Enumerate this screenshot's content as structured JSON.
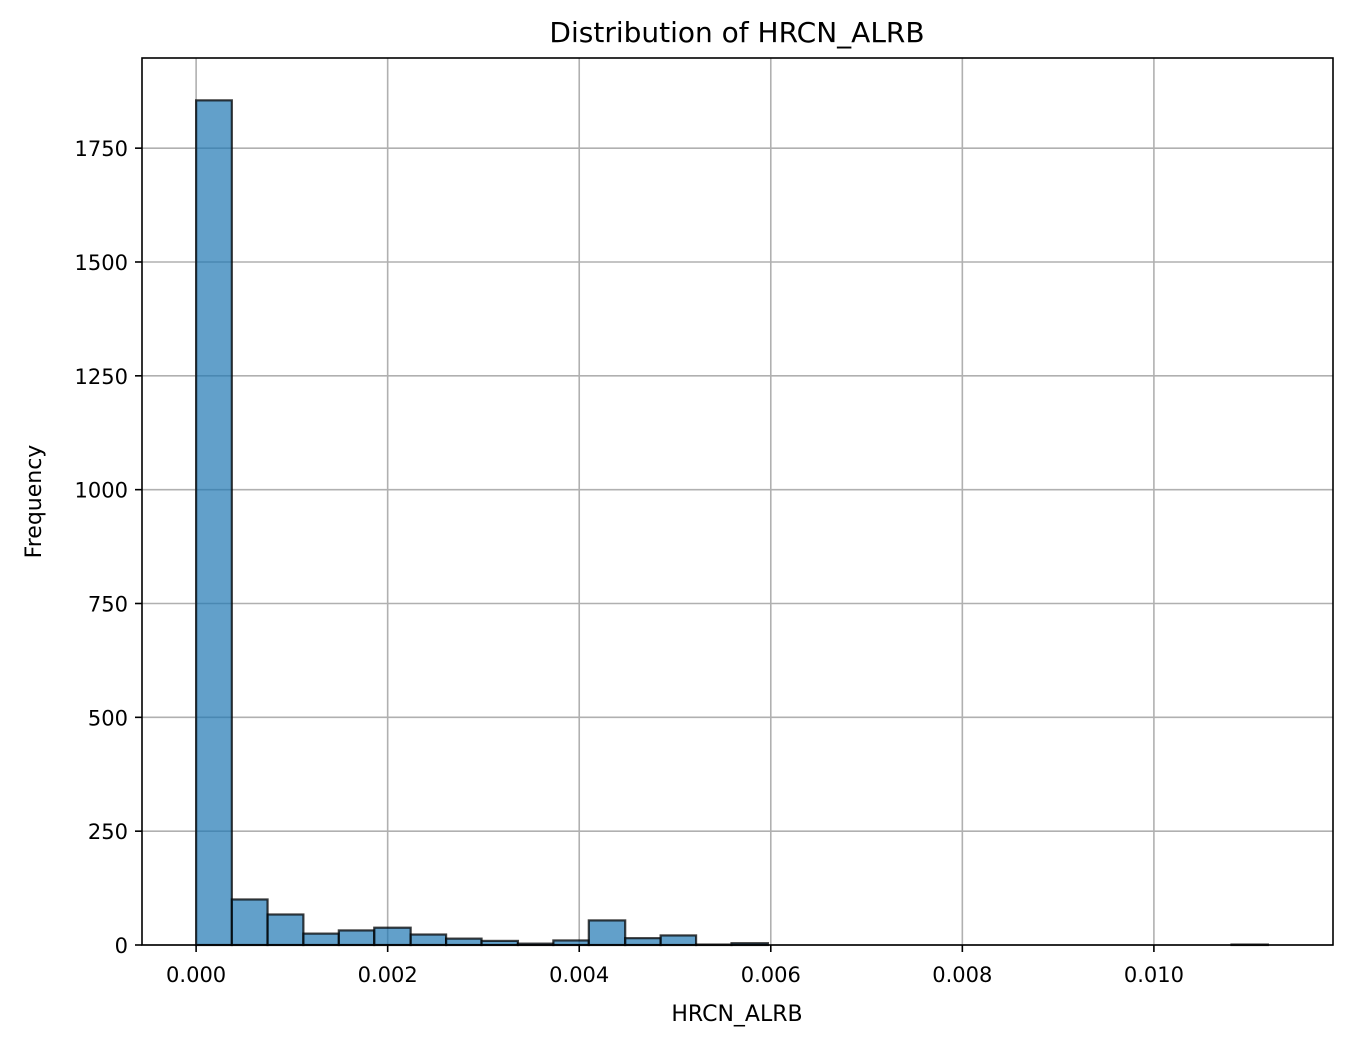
{
  "chart_data": {
    "type": "bar",
    "title": "Distribution of HRCN_ALRB",
    "xlabel": "HRCN_ALRB",
    "ylabel": "Frequency",
    "xlim": [
      -0.000565,
      0.01187
    ],
    "ylim": [
      0,
      1948
    ],
    "grid": true,
    "bar_color": "#1f77b4",
    "bin_edges": [
      0.0,
      0.000373,
      0.000746,
      0.00112,
      0.00149,
      0.00186,
      0.00224,
      0.00261,
      0.00298,
      0.00336,
      0.00373,
      0.0041,
      0.00448,
      0.00485,
      0.00522,
      0.00559,
      0.00597,
      0.00634,
      0.00671,
      0.00709,
      0.00746,
      0.00783,
      0.0082,
      0.00858,
      0.00895,
      0.00932,
      0.0097,
      0.01007,
      0.01044,
      0.01081,
      0.01119
    ],
    "counts": [
      1855,
      100,
      67,
      25,
      32,
      38,
      23,
      14,
      9,
      3,
      10,
      54,
      15,
      21,
      1,
      4,
      0,
      0,
      0,
      0,
      0,
      0,
      0,
      0,
      0,
      0,
      0,
      0,
      0,
      1
    ],
    "x_ticks": [
      {
        "value": 0.0,
        "label": "0.000"
      },
      {
        "value": 0.002,
        "label": "0.002"
      },
      {
        "value": 0.004,
        "label": "0.004"
      },
      {
        "value": 0.006,
        "label": "0.006"
      },
      {
        "value": 0.008,
        "label": "0.008"
      },
      {
        "value": 0.01,
        "label": "0.010"
      }
    ],
    "y_ticks": [
      {
        "value": 0,
        "label": "0"
      },
      {
        "value": 250,
        "label": "250"
      },
      {
        "value": 500,
        "label": "500"
      },
      {
        "value": 750,
        "label": "750"
      },
      {
        "value": 1000,
        "label": "1000"
      },
      {
        "value": 1250,
        "label": "1250"
      },
      {
        "value": 1500,
        "label": "1500"
      },
      {
        "value": 1750,
        "label": "1750"
      }
    ]
  }
}
